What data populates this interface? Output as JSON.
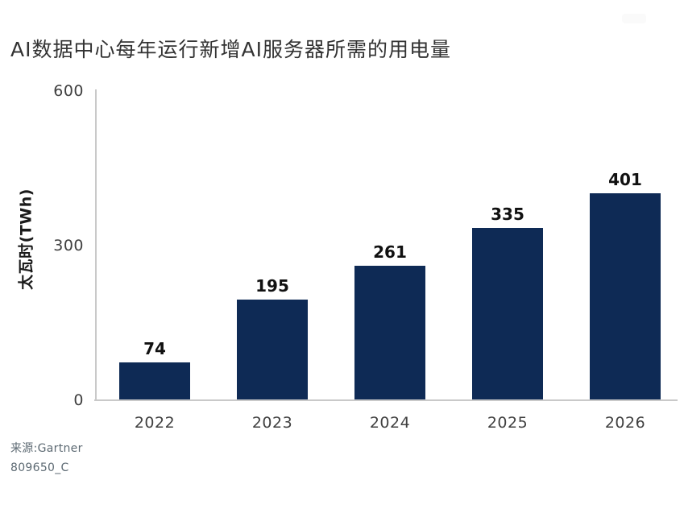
{
  "chart_data": {
    "type": "bar",
    "title": "AI数据中心每年运行新增AI服务器所需的用电量",
    "ylabel": "太瓦时(TWh)",
    "xlabel": "",
    "categories": [
      "2022",
      "2023",
      "2024",
      "2025",
      "2026"
    ],
    "values": [
      74,
      195,
      261,
      335,
      401
    ],
    "ylim": [
      0,
      600
    ],
    "yticks": [
      0,
      300,
      600
    ],
    "bar_color": "#0e2a55",
    "axis_color": "#c9c9c9",
    "grid": false,
    "legend_position": "none",
    "value_labels_shown": true
  },
  "footer": {
    "source": "来源:Gartner",
    "code": "809650_C"
  }
}
